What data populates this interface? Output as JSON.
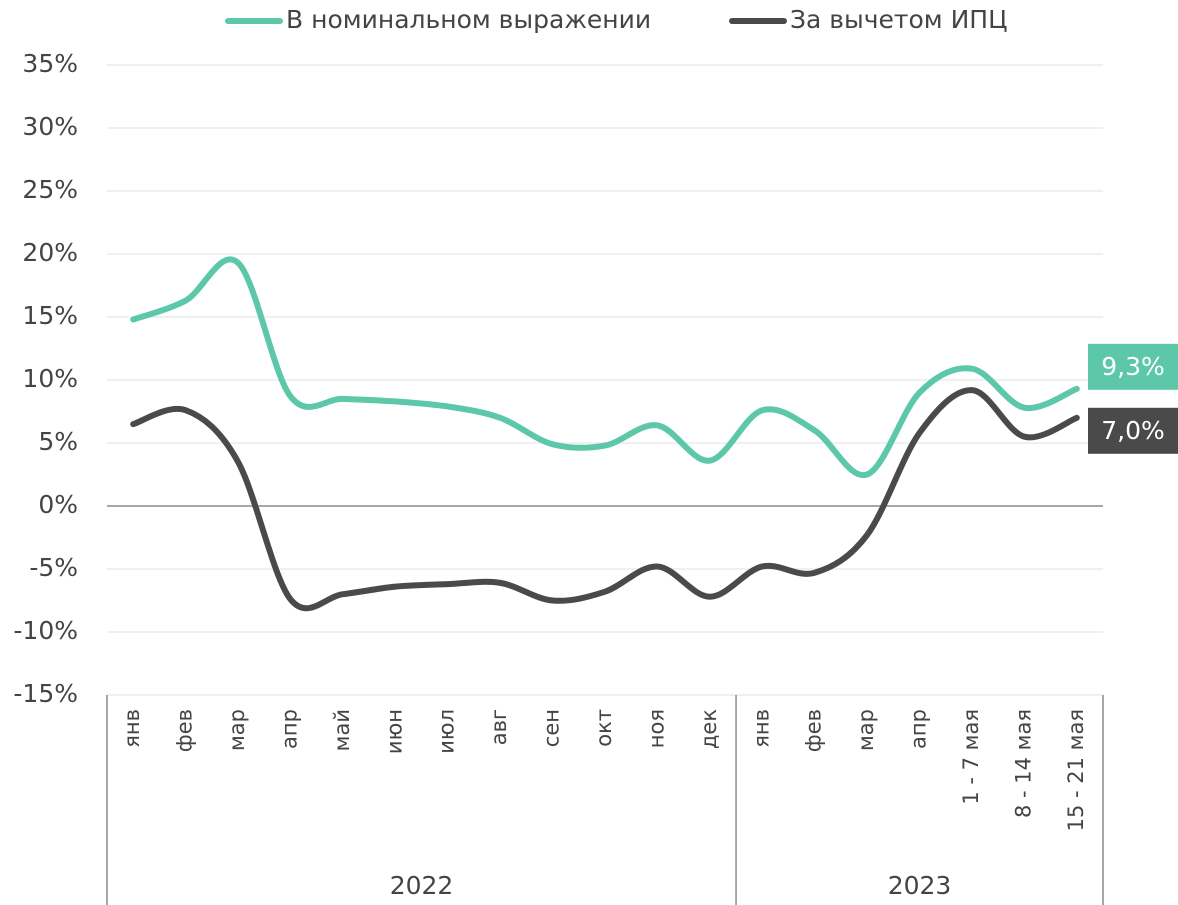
{
  "chart_data": {
    "type": "line",
    "groups": [
      {
        "label": "2022",
        "categories": [
          "янв",
          "фев",
          "мар",
          "апр",
          "май",
          "июн",
          "июл",
          "авг",
          "сен",
          "окт",
          "ноя",
          "дек"
        ]
      },
      {
        "label": "2023",
        "categories": [
          "янв",
          "фев",
          "мар",
          "апр",
          "1 - 7 мая",
          "8 - 14 мая",
          "15 - 21 мая"
        ]
      }
    ],
    "series": [
      {
        "name": "В номинальном выражении",
        "color": "#5cc8a9",
        "values": [
          14.8,
          16.3,
          19.3,
          8.7,
          8.5,
          8.3,
          7.9,
          7.0,
          4.9,
          4.8,
          6.4,
          3.6,
          7.6,
          6.0,
          2.5,
          9.0,
          10.9,
          7.8,
          9.3
        ],
        "value_labels": [
          null,
          null,
          null,
          null,
          null,
          null,
          null,
          null,
          null,
          null,
          null,
          null,
          null,
          null,
          null,
          null,
          null,
          null,
          "9,3%"
        ]
      },
      {
        "name": "За вычетом ИПЦ",
        "color": "#4a4a4a",
        "values": [
          6.5,
          7.6,
          3.5,
          -7.4,
          -7.0,
          -6.4,
          -6.2,
          -6.1,
          -7.5,
          -6.8,
          -4.8,
          -7.2,
          -4.8,
          -5.3,
          -2.3,
          5.8,
          9.2,
          5.5,
          7.0
        ],
        "value_labels": [
          null,
          null,
          null,
          null,
          null,
          null,
          null,
          null,
          null,
          null,
          null,
          null,
          null,
          null,
          null,
          null,
          null,
          null,
          "7,0%"
        ]
      }
    ],
    "ylim": [
      -15,
      35
    ],
    "yticks": [
      {
        "value": -15,
        "label": "-15%"
      },
      {
        "value": -10,
        "label": "-10%"
      },
      {
        "value": -5,
        "label": "-5%"
      },
      {
        "value": 0,
        "label": "0%"
      },
      {
        "value": 5,
        "label": "5%"
      },
      {
        "value": 10,
        "label": "10%"
      },
      {
        "value": 15,
        "label": "15%"
      },
      {
        "value": 20,
        "label": "20%"
      },
      {
        "value": 25,
        "label": "25%"
      },
      {
        "value": 30,
        "label": "30%"
      },
      {
        "value": 35,
        "label": "35%"
      }
    ],
    "grid": true
  }
}
